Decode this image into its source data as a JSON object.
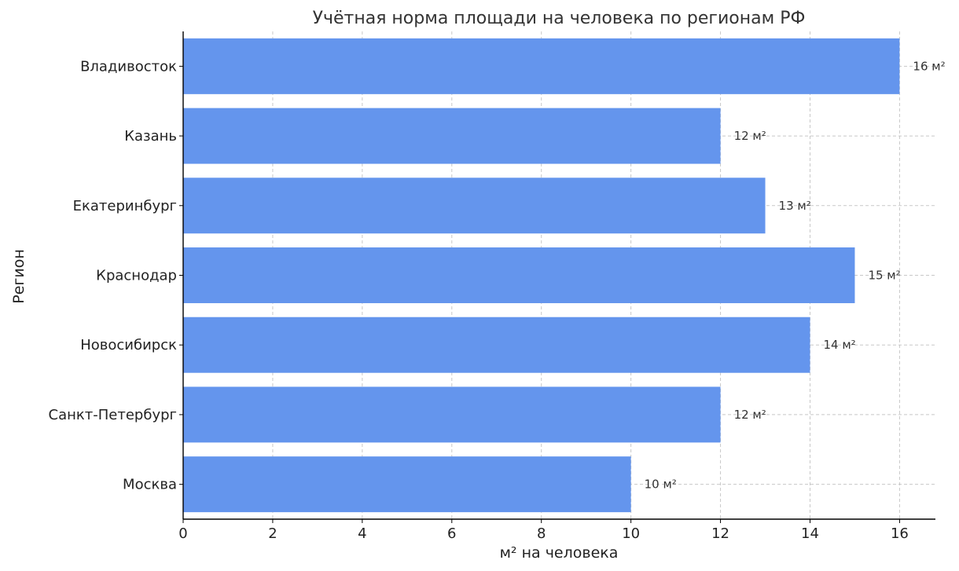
{
  "chart_data": {
    "type": "bar",
    "orientation": "horizontal",
    "title": "Учётная норма площади на человека по регионам РФ",
    "xlabel": "м² на человека",
    "ylabel": "Регион",
    "categories": [
      "Москва",
      "Санкт-Петербург",
      "Новосибирск",
      "Краснодар",
      "Екатеринбург",
      "Казань",
      "Владивосток"
    ],
    "values": [
      10,
      12,
      14,
      15,
      13,
      12,
      16
    ],
    "data_labels": [
      "10 м²",
      "12 м²",
      "14 м²",
      "15 м²",
      "13 м²",
      "12 м²",
      "16 м²"
    ],
    "xlim": [
      0,
      16.8
    ],
    "xticks": [
      "0",
      "2",
      "4",
      "6",
      "8",
      "10",
      "12",
      "14",
      "16"
    ],
    "grid": true,
    "bar_color": "#6495ED"
  }
}
